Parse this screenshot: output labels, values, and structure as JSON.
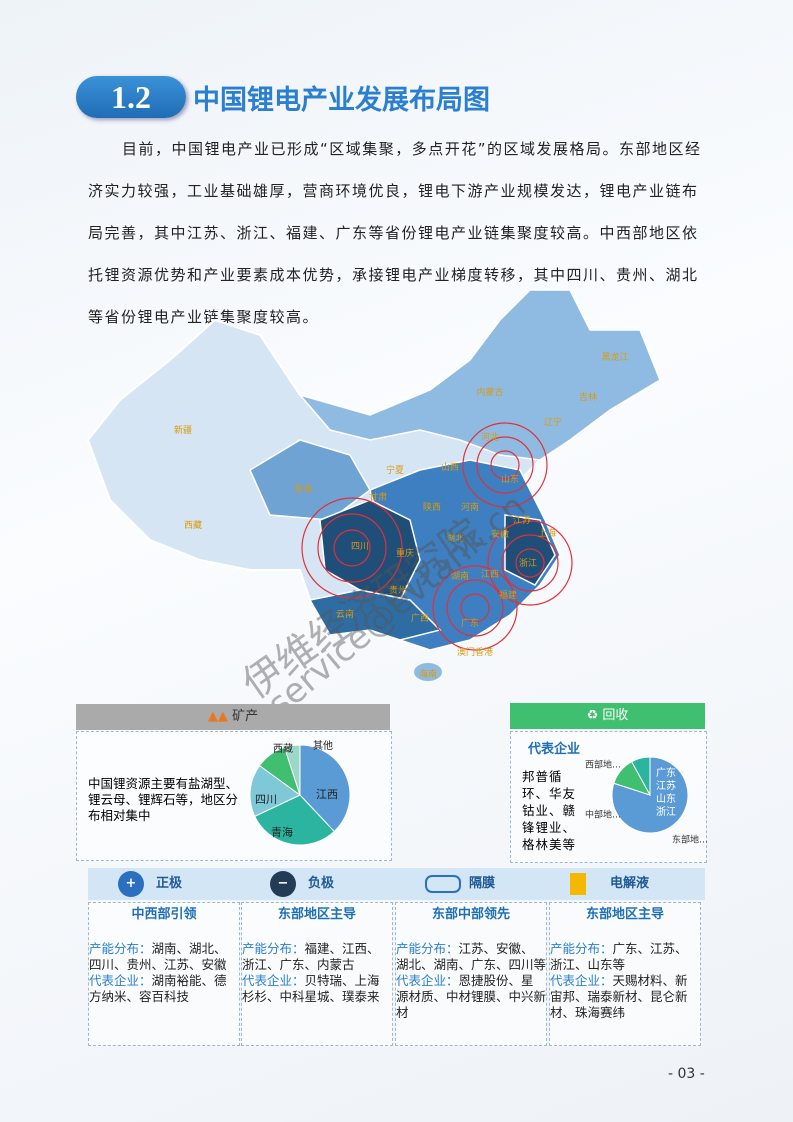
{
  "header": {
    "number": "1.2",
    "title": "中国锂电产业发展布局图"
  },
  "paragraph": "目前，中国锂电产业已形成“区域集聚，多点开花”的区域发展格局。东部地区经济实力较强，工业基础雄厚，营商环境优良，锂电下游产业规模发达，锂电产业链布局完善，其中江苏、浙江、福建、广东等省份锂电产业链集聚度较高。中西部地区依托锂资源优势和产业要素成本优势，承接锂电产业梯度转移，其中四川、贵州、湖北等省份锂电产业链集聚度较高。",
  "map": {
    "provinces": [
      "新疆",
      "西藏",
      "青海",
      "甘肃",
      "宁夏",
      "内蒙古",
      "黑龙江",
      "吉林",
      "辽宁",
      "河北",
      "山西",
      "陕西",
      "河南",
      "山东",
      "江苏",
      "安徽",
      "湖北",
      "四川",
      "重庆",
      "湖南",
      "江西",
      "浙江",
      "上海",
      "贵州",
      "福建",
      "云南",
      "广西",
      "广东",
      "澳门香港",
      "海南"
    ]
  },
  "watermark": [
    "伊维经济研究院",
    "service@evtank.cn"
  ],
  "mining": {
    "title": "矿产",
    "text": "中国锂资源主要有盐湖型、锂云母、锂辉石等，地区分布相对集中"
  },
  "recycling": {
    "title": "回收",
    "heading": "代表企业",
    "text": "邦普循环、华友钴业、赣锋锂业、格林美等"
  },
  "chart_data": [
    {
      "type": "pie",
      "categories": [
        "江西",
        "青海",
        "四川",
        "西藏",
        "其他"
      ],
      "values": [
        38,
        30,
        17,
        10,
        5
      ],
      "colors": [
        "#5b9bd5",
        "#2bb5a0",
        "#7ec8d8",
        "#3fbf6f",
        "#9bd8c8"
      ]
    },
    {
      "type": "pie",
      "categories": [
        "东部地…",
        "中部地…",
        "西部地…"
      ],
      "values": [
        80,
        12,
        8
      ],
      "colors": [
        "#5b9bd5",
        "#3fbf6f",
        "#2bb5a0"
      ],
      "inner_labels": [
        "广东",
        "江苏",
        "山东",
        "浙江"
      ]
    }
  ],
  "columns": [
    {
      "title": "正极",
      "heading": "中西部引领",
      "capacity_label": "产能分布：",
      "capacity": "湖南、湖北、四川、贵州、江苏、安徽",
      "company_label": "代表企业：",
      "companies": "湖南裕能、德方纳米、容百科技"
    },
    {
      "title": "负极",
      "heading": "东部地区主导",
      "capacity_label": "产能分布：",
      "capacity": "福建、江西、浙江、广东、内蒙古",
      "company_label": "代表企业：",
      "companies": "贝特瑞、上海杉杉、中科星城、璞泰来"
    },
    {
      "title": "隔膜",
      "heading": "东部中部领先",
      "capacity_label": "产能分布：",
      "capacity": "江苏、安徽、湖北、湖南、广东、四川等",
      "company_label": "代表企业：",
      "companies": "恩捷股份、星源材质、中材锂膜、中兴新材"
    },
    {
      "title": "电解液",
      "heading": "东部地区主导",
      "capacity_label": "产能分布：",
      "capacity": "广东、江苏、浙江、山东等",
      "company_label": "代表企业：",
      "companies": "天赐材料、新宙邦、瑞泰新材、昆仑新材、珠海赛纬"
    }
  ],
  "page_number": "- 03 -"
}
